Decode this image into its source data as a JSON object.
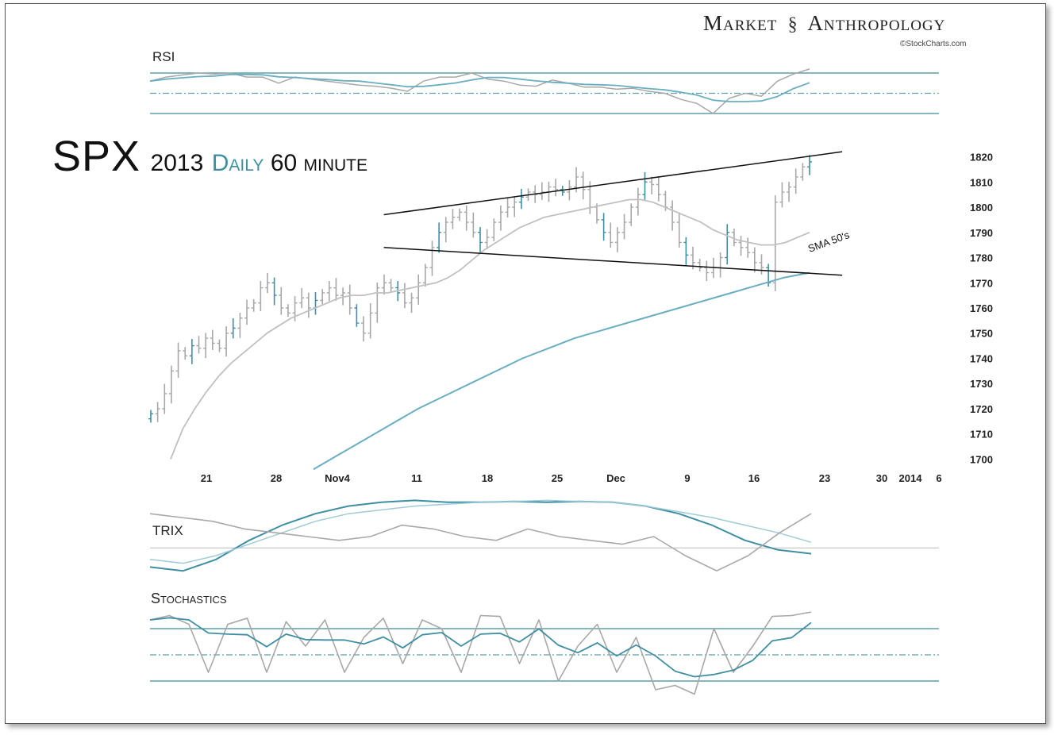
{
  "header": {
    "brand_left": "Market",
    "brand_right": "Anthropology",
    "copyright": "©StockCharts.com"
  },
  "title": {
    "symbol": "SPX",
    "year": "2013",
    "daily": "Daily",
    "interval": "60 minute"
  },
  "panels": {
    "rsi_label": "RSI",
    "trix_label": "TRIX",
    "stoch_label": "Stochastics"
  },
  "colors": {
    "accent": "#3f8fa3",
    "price_bars": "#a8a8a8",
    "sma_fast": "#c0c0c0",
    "sma_slow": "#6aaec2",
    "trendline": "#111111",
    "reference_line": "#5f9ea8"
  },
  "chart_data": [
    {
      "type": "line",
      "name": "RSI",
      "ylim": [
        0,
        100
      ],
      "reference_levels": [
        70,
        50,
        30
      ],
      "points": [
        [
          0,
          62
        ],
        [
          10,
          66
        ],
        [
          20,
          68
        ],
        [
          30,
          70
        ],
        [
          40,
          69
        ],
        [
          50,
          70
        ],
        [
          60,
          66
        ],
        [
          70,
          66
        ],
        [
          80,
          60
        ],
        [
          90,
          66
        ],
        [
          100,
          64
        ],
        [
          110,
          62
        ],
        [
          120,
          60
        ],
        [
          130,
          58
        ],
        [
          140,
          57
        ],
        [
          150,
          55
        ],
        [
          160,
          52
        ],
        [
          170,
          62
        ],
        [
          180,
          66
        ],
        [
          190,
          66
        ],
        [
          200,
          70
        ],
        [
          210,
          64
        ],
        [
          220,
          62
        ],
        [
          230,
          58
        ],
        [
          240,
          57
        ],
        [
          250,
          63
        ],
        [
          260,
          60
        ],
        [
          270,
          56
        ],
        [
          280,
          56
        ],
        [
          290,
          54
        ],
        [
          300,
          55
        ],
        [
          310,
          52
        ],
        [
          320,
          50
        ],
        [
          330,
          44
        ],
        [
          340,
          40
        ],
        [
          350,
          30
        ],
        [
          360,
          45
        ],
        [
          370,
          50
        ],
        [
          380,
          47
        ],
        [
          390,
          62
        ],
        [
          400,
          69
        ],
        [
          410,
          74
        ]
      ]
    },
    {
      "type": "bar",
      "title": "SPX 2013 Daily 60 minute",
      "ylim": [
        1697,
        1823
      ],
      "yticks": [
        1820,
        1810,
        1800,
        1790,
        1780,
        1770,
        1760,
        1750,
        1740,
        1730,
        1720,
        1710,
        1700
      ],
      "xtick_labels": [
        "21",
        "28",
        "Nov4",
        "11",
        "18",
        "25",
        "Dec",
        "9",
        "16",
        "23",
        "30",
        "2014",
        "6"
      ],
      "closes": [
        1718,
        1720,
        1726,
        1735,
        1743,
        1741,
        1745,
        1744,
        1748,
        1746,
        1744,
        1750,
        1752,
        1756,
        1760,
        1762,
        1768,
        1770,
        1765,
        1760,
        1758,
        1762,
        1764,
        1760,
        1763,
        1766,
        1768,
        1765,
        1766,
        1760,
        1754,
        1750,
        1758,
        1768,
        1770,
        1768,
        1766,
        1762,
        1764,
        1770,
        1776,
        1784,
        1790,
        1794,
        1796,
        1798,
        1794,
        1790,
        1786,
        1788,
        1794,
        1798,
        1800,
        1802,
        1804,
        1806,
        1805,
        1806,
        1808,
        1807,
        1806,
        1808,
        1812,
        1807,
        1800,
        1795,
        1790,
        1786,
        1790,
        1794,
        1800,
        1805,
        1810,
        1809,
        1805,
        1800,
        1794,
        1786,
        1781,
        1778,
        1776,
        1774,
        1776,
        1780,
        1790,
        1786,
        1784,
        1782,
        1778,
        1776,
        1770,
        1802,
        1806,
        1808,
        1812,
        1816,
        1818
      ],
      "sma_fast": [
        1700,
        1712,
        1720,
        1727,
        1733,
        1738,
        1742,
        1746,
        1750,
        1753,
        1756,
        1758,
        1760,
        1762,
        1764,
        1765,
        1765,
        1766,
        1766,
        1767,
        1768,
        1769,
        1770,
        1772,
        1775,
        1779,
        1783,
        1786,
        1789,
        1792,
        1794,
        1796,
        1797,
        1798,
        1799,
        1800,
        1801,
        1802,
        1803,
        1803,
        1802,
        1800,
        1798,
        1796,
        1794,
        1791,
        1789,
        1787,
        1786,
        1785,
        1785,
        1786,
        1788,
        1790
      ],
      "sma_slow": [
        1696,
        1702,
        1708,
        1714,
        1720,
        1725,
        1730,
        1735,
        1740,
        1744,
        1748,
        1751,
        1754,
        1757,
        1760,
        1763,
        1766,
        1769,
        1772,
        1774
      ],
      "trendlines": [
        {
          "name": "upper",
          "from": [
            0.32,
            1797
          ],
          "to": [
            0.97,
            1822
          ]
        },
        {
          "name": "lower",
          "from": [
            0.32,
            1784
          ],
          "to": [
            0.97,
            1773
          ]
        }
      ],
      "annotations": [
        "SMA 50's"
      ]
    },
    {
      "type": "line",
      "name": "TRIX",
      "series": [
        {
          "values": [
            -0.5,
            -0.6,
            -0.3,
            0.2,
            0.6,
            0.9,
            1.1,
            1.2,
            1.25,
            1.2,
            1.2,
            1.22,
            1.2,
            1.22,
            1.2,
            1.1,
            0.9,
            0.6,
            0.2,
            -0.05,
            -0.15
          ]
        },
        {
          "values": [
            -0.3,
            -0.4,
            -0.2,
            0.1,
            0.4,
            0.7,
            0.9,
            1.0,
            1.1,
            1.15,
            1.2,
            1.22,
            1.25,
            1.22,
            1.2,
            1.1,
            0.95,
            0.8,
            0.6,
            0.4,
            0.15
          ]
        },
        {
          "values": [
            0.9,
            0.8,
            0.7,
            0.5,
            0.4,
            0.3,
            0.2,
            0.3,
            0.6,
            0.5,
            0.3,
            0.2,
            0.5,
            0.3,
            0.2,
            0.1,
            0.3,
            -0.2,
            -0.6,
            -0.2,
            0.4,
            0.9
          ]
        }
      ]
    },
    {
      "type": "line",
      "name": "Stochastics",
      "ylim": [
        0,
        100
      ],
      "reference_levels": [
        80,
        50,
        20
      ],
      "points": [
        [
          0,
          90
        ],
        [
          1,
          95
        ],
        [
          2,
          85
        ],
        [
          3,
          30
        ],
        [
          4,
          85
        ],
        [
          5,
          92
        ],
        [
          6,
          30
        ],
        [
          7,
          88
        ],
        [
          8,
          60
        ],
        [
          9,
          90
        ],
        [
          10,
          30
        ],
        [
          11,
          70
        ],
        [
          12,
          92
        ],
        [
          13,
          40
        ],
        [
          14,
          90
        ],
        [
          15,
          80
        ],
        [
          16,
          30
        ],
        [
          17,
          95
        ],
        [
          18,
          94
        ],
        [
          19,
          40
        ],
        [
          20,
          90
        ],
        [
          21,
          20
        ],
        [
          22,
          60
        ],
        [
          23,
          85
        ],
        [
          24,
          30
        ],
        [
          25,
          70
        ],
        [
          26,
          10
        ],
        [
          27,
          15
        ],
        [
          28,
          5
        ],
        [
          29,
          80
        ],
        [
          30,
          30
        ],
        [
          31,
          60
        ],
        [
          32,
          94
        ],
        [
          33,
          95
        ],
        [
          34,
          99
        ]
      ]
    }
  ]
}
